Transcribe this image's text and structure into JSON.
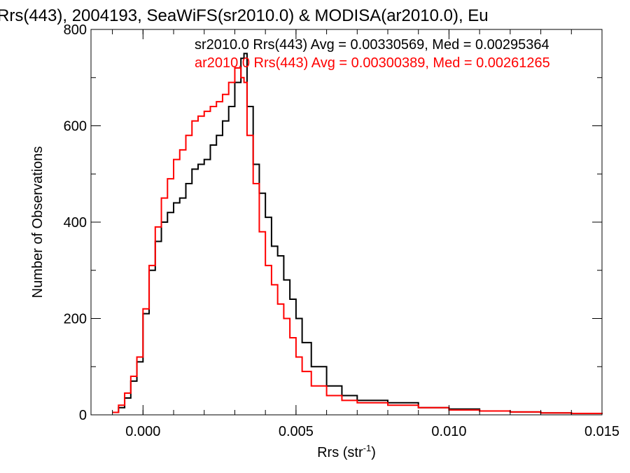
{
  "chart_data": {
    "type": "line",
    "step": true,
    "title": "Rrs(443), 2004193, SeaWiFS(sr2010.0) & MODISA(ar2010.0), Eu",
    "xlabel": "Rrs (str",
    "xlabel_sup": "-1",
    "xlabel_tail": ")",
    "ylabel": "Number of Observations",
    "xlim": [
      -0.0017,
      0.015
    ],
    "ylim": [
      0,
      800
    ],
    "xticks": [
      0.0,
      0.005,
      0.01,
      0.015
    ],
    "xtick_labels": [
      "0.000",
      "0.005",
      "0.010",
      "0.015"
    ],
    "yticks": [
      0,
      200,
      400,
      600,
      800
    ],
    "ytick_labels": [
      "0",
      "200",
      "400",
      "600",
      "800"
    ],
    "grid": false,
    "annotations": [
      {
        "text": "sr2010.0 Rrs(443) Avg = 0.00330569, Med = 0.00295364",
        "color": "#000000"
      },
      {
        "text": "ar2010.0 Rrs(443) Avg = 0.00300389, Med = 0.00261265",
        "color": "#ff0000"
      }
    ],
    "series": [
      {
        "color": "#000000",
        "x": [
          -0.001,
          -0.0008,
          -0.0006,
          -0.0004,
          -0.0002,
          0.0,
          0.0002,
          0.0004,
          0.0006,
          0.0008,
          0.001,
          0.0012,
          0.0014,
          0.0016,
          0.0018,
          0.002,
          0.0022,
          0.0024,
          0.0026,
          0.0028,
          0.003,
          0.0032,
          0.0033,
          0.0034,
          0.0036,
          0.0038,
          0.004,
          0.0042,
          0.0044,
          0.0046,
          0.0048,
          0.005,
          0.0052,
          0.0055,
          0.006,
          0.0065,
          0.007,
          0.008,
          0.009,
          0.01,
          0.011,
          0.012,
          0.013,
          0.014,
          0.015
        ],
        "y": [
          5,
          15,
          35,
          70,
          110,
          210,
          300,
          360,
          400,
          420,
          440,
          450,
          480,
          510,
          520,
          530,
          560,
          580,
          610,
          640,
          690,
          740,
          750,
          640,
          520,
          460,
          410,
          350,
          330,
          280,
          240,
          200,
          150,
          100,
          60,
          40,
          30,
          25,
          15,
          12,
          8,
          6,
          4,
          3,
          2
        ]
      },
      {
        "color": "#ff0000",
        "x": [
          -0.001,
          -0.0008,
          -0.0006,
          -0.0004,
          -0.0002,
          0.0,
          0.0002,
          0.0004,
          0.0006,
          0.0008,
          0.001,
          0.0012,
          0.0014,
          0.0016,
          0.0018,
          0.002,
          0.0022,
          0.0024,
          0.0026,
          0.0028,
          0.003,
          0.0032,
          0.0033,
          0.0034,
          0.0036,
          0.0038,
          0.004,
          0.0042,
          0.0044,
          0.0046,
          0.0048,
          0.005,
          0.0052,
          0.0055,
          0.006,
          0.0065,
          0.007,
          0.008,
          0.009,
          0.01,
          0.011,
          0.012,
          0.013,
          0.014,
          0.015
        ],
        "y": [
          5,
          20,
          45,
          80,
          120,
          220,
          310,
          390,
          450,
          490,
          530,
          550,
          580,
          610,
          620,
          630,
          640,
          650,
          665,
          690,
          720,
          700,
          690,
          580,
          480,
          380,
          310,
          270,
          230,
          200,
          160,
          120,
          90,
          60,
          40,
          30,
          25,
          20,
          15,
          10,
          8,
          6,
          4,
          3,
          2
        ]
      }
    ]
  }
}
